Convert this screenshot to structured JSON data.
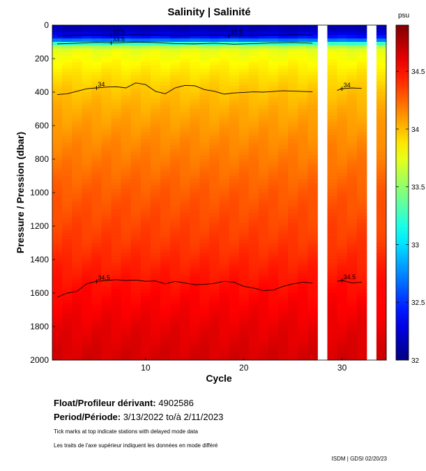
{
  "chart_data": {
    "type": "heatmap",
    "title": "Salinity | Salinité",
    "xlabel": "Cycle",
    "ylabel": "Pressure / Pression (dbar)",
    "xlim": [
      0.5,
      34.5
    ],
    "ylim": [
      0,
      2000
    ],
    "y_inverted": true,
    "xticks": [
      10,
      20,
      30
    ],
    "yticks": [
      0,
      200,
      400,
      600,
      800,
      1000,
      1200,
      1400,
      1600,
      1800,
      2000
    ],
    "colorbar": {
      "unit": "psu",
      "range": [
        32,
        34.9
      ],
      "ticks": [
        "34.5",
        "34",
        "33.5",
        "33",
        "32.5",
        "32"
      ],
      "tick_values": [
        34.5,
        34,
        33.5,
        33,
        32.5,
        32
      ]
    },
    "data_gaps_cycles": [
      [
        27.5,
        28.5
      ],
      [
        32.5,
        33.5
      ]
    ],
    "depth_profile": [
      {
        "p": 0,
        "s": 32.1
      },
      {
        "p": 40,
        "s": 32.2
      },
      {
        "p": 70,
        "s": 32.4
      },
      {
        "p": 90,
        "s": 32.7
      },
      {
        "p": 105,
        "s": 33.1
      },
      {
        "p": 120,
        "s": 33.5
      },
      {
        "p": 150,
        "s": 33.75
      },
      {
        "p": 220,
        "s": 33.82
      },
      {
        "p": 300,
        "s": 33.9
      },
      {
        "p": 380,
        "s": 33.97
      },
      {
        "p": 500,
        "s": 34.05
      },
      {
        "p": 700,
        "s": 34.15
      },
      {
        "p": 1000,
        "s": 34.28
      },
      {
        "p": 1300,
        "s": 34.38
      },
      {
        "p": 1550,
        "s": 34.5
      },
      {
        "p": 1800,
        "s": 34.6
      },
      {
        "p": 2000,
        "s": 34.66
      }
    ],
    "contours": [
      {
        "level": "32.5",
        "cycles": [
          1,
          3,
          5,
          7,
          9,
          11,
          13,
          15,
          17,
          19,
          21,
          23,
          25,
          27
        ],
        "pressure": [
          65,
          62,
          60,
          62,
          58,
          60,
          64,
          62,
          60,
          64,
          62,
          60,
          58,
          60
        ],
        "label_at": [
          6.5,
          18.5
        ]
      },
      {
        "level": "33.5",
        "cycles": [
          1,
          3,
          5,
          7,
          9,
          11,
          13,
          15,
          17,
          19,
          21,
          23,
          25,
          27
        ],
        "pressure": [
          112,
          108,
          103,
          106,
          101,
          104,
          110,
          112,
          108,
          114,
          110,
          106,
          104,
          108
        ],
        "label_at": [
          6.5
        ]
      },
      {
        "level": "34",
        "cycles": [
          1,
          2,
          3,
          4,
          5,
          6,
          7,
          8,
          9,
          10,
          11,
          12,
          13,
          14,
          15,
          16,
          17,
          18,
          19,
          20,
          21,
          22,
          23,
          24,
          25,
          26,
          27
        ],
        "pressure": [
          415,
          410,
          395,
          380,
          375,
          370,
          368,
          375,
          345,
          355,
          395,
          410,
          375,
          360,
          362,
          385,
          395,
          412,
          405,
          402,
          398,
          400,
          396,
          392,
          394,
          396,
          398
        ],
        "label_at": [
          5
        ]
      },
      {
        "level": "34.5",
        "cycles": [
          1,
          2,
          3,
          4,
          5,
          6,
          7,
          8,
          9,
          10,
          11,
          12,
          13,
          14,
          15,
          16,
          17,
          18,
          19,
          20,
          21,
          22,
          23,
          24,
          25,
          26,
          27
        ],
        "pressure": [
          1625,
          1600,
          1590,
          1545,
          1530,
          1525,
          1520,
          1525,
          1522,
          1530,
          1528,
          1545,
          1530,
          1540,
          1550,
          1548,
          1542,
          1530,
          1535,
          1560,
          1570,
          1585,
          1582,
          1560,
          1545,
          1535,
          1540
        ],
        "label_at": [
          5
        ]
      },
      {
        "level": "34",
        "cycles": [
          29.5,
          30,
          31,
          32
        ],
        "pressure": [
          390,
          380,
          375,
          378
        ],
        "label_at": [
          30
        ]
      },
      {
        "level": "34.5",
        "cycles": [
          29.5,
          30,
          31,
          32
        ],
        "pressure": [
          1530,
          1525,
          1540,
          1535
        ],
        "label_at": [
          30
        ]
      }
    ]
  },
  "info": {
    "float_label": "Float/Profileur dérivant:",
    "float_value": "4902586",
    "period_label": "Period/Période:",
    "period_value": "3/13/2022  to/à  2/11/2023",
    "note_en": "Tick marks at top indicate stations with delayed mode data",
    "note_fr": "Les traits de l'axe supérieur indiquent les données en mode différé",
    "credit": "ISDM | GDSI  02/20/23"
  }
}
